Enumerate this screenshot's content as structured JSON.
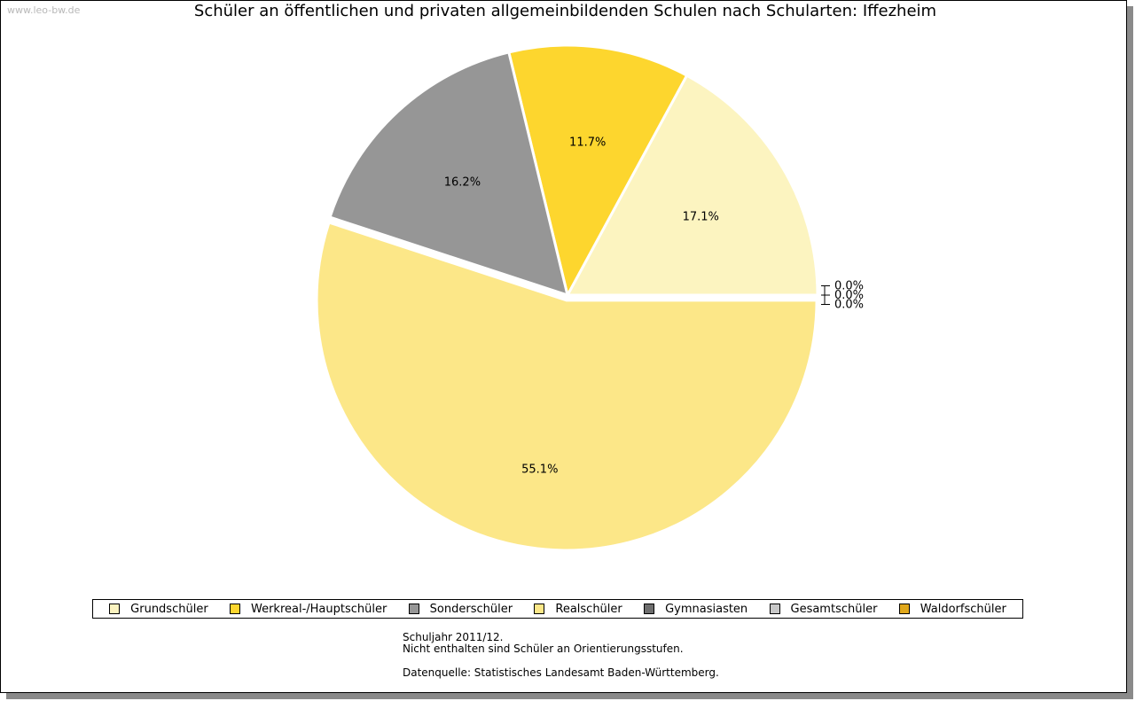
{
  "watermark": "www.leo-bw.de",
  "chart_data": {
    "type": "pie",
    "title": "Schüler an öffentlichen und privaten allgemeinbildenden Schulen nach Schularten: Iffezheim",
    "slices": [
      {
        "name": "Grundschüler",
        "value": 17.1,
        "label": "17.1%",
        "color": "#fcf4c0"
      },
      {
        "name": "Werkreal-/Hauptschüler",
        "value": 11.7,
        "label": "11.7%",
        "color": "#fdd62e"
      },
      {
        "name": "Sonderschüler",
        "value": 16.2,
        "label": "16.2%",
        "color": "#969696"
      },
      {
        "name": "Realschüler",
        "value": 55.1,
        "label": "55.1%",
        "color": "#fce788"
      },
      {
        "name": "Gymnasiasten",
        "value": 0.0,
        "label": "0.0%",
        "color": "#6e6e6e"
      },
      {
        "name": "Gesamtschüler",
        "value": 0.0,
        "label": "0.0%",
        "color": "#c8c8c8"
      },
      {
        "name": "Waldorfschüler",
        "value": 0.0,
        "label": "0.0%",
        "color": "#e0a81c"
      }
    ],
    "legend_position": "bottom"
  },
  "footnote": {
    "line1": "Schuljahr 2011/12.",
    "line2": "Nicht enthalten sind Schüler an Orientierungsstufen.",
    "line3": "Datenquelle: Statistisches Landesamt Baden-Württemberg."
  }
}
